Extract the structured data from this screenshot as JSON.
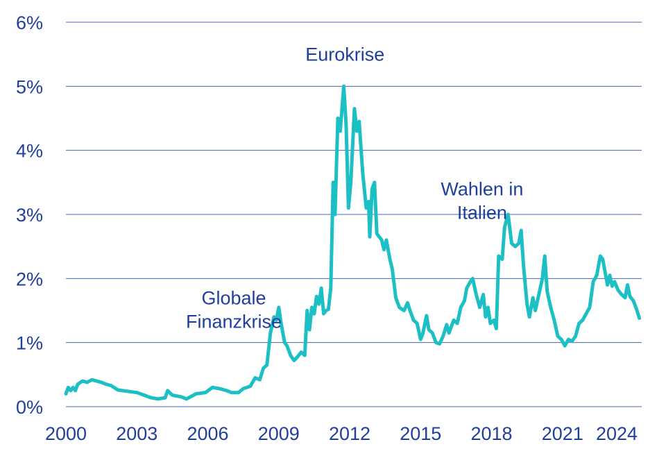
{
  "chart_data": {
    "type": "line",
    "title": "",
    "xlabel": "",
    "ylabel": "",
    "xlim": [
      2000,
      2024.35
    ],
    "ylim": [
      0,
      6
    ],
    "grid": true,
    "x_ticks": [
      2000,
      2003,
      2006,
      2009,
      2012,
      2015,
      2018,
      2021,
      2024
    ],
    "x_tick_labels": [
      "2000",
      "2003",
      "2006",
      "2009",
      "2012",
      "2015",
      "2018",
      "2021",
      "2024"
    ],
    "y_ticks": [
      0,
      1,
      2,
      3,
      4,
      5,
      6
    ],
    "y_tick_labels": [
      "0%",
      "1%",
      "2%",
      "3%",
      "4%",
      "5%",
      "6%"
    ],
    "annotations": [
      {
        "lines": [
          "Globale",
          "Finanzkrise"
        ],
        "x": 2007.1,
        "y": 1.6
      },
      {
        "lines": [
          "Eurokrise"
        ],
        "x": 2011.8,
        "y": 5.4
      },
      {
        "lines": [
          "Wahlen in",
          "Italien"
        ],
        "x": 2017.6,
        "y": 3.3
      }
    ],
    "series": [
      {
        "color": "#1cbfc4",
        "points": [
          [
            2000.0,
            0.2
          ],
          [
            2000.1,
            0.3
          ],
          [
            2000.2,
            0.25
          ],
          [
            2000.3,
            0.3
          ],
          [
            2000.4,
            0.25
          ],
          [
            2000.5,
            0.35
          ],
          [
            2000.7,
            0.4
          ],
          [
            2000.9,
            0.38
          ],
          [
            2001.1,
            0.42
          ],
          [
            2001.3,
            0.4
          ],
          [
            2001.5,
            0.38
          ],
          [
            2001.7,
            0.35
          ],
          [
            2001.9,
            0.33
          ],
          [
            2002.2,
            0.26
          ],
          [
            2002.6,
            0.24
          ],
          [
            2003.0,
            0.22
          ],
          [
            2003.3,
            0.18
          ],
          [
            2003.6,
            0.14
          ],
          [
            2003.9,
            0.12
          ],
          [
            2004.2,
            0.14
          ],
          [
            2004.3,
            0.25
          ],
          [
            2004.5,
            0.18
          ],
          [
            2004.9,
            0.15
          ],
          [
            2005.1,
            0.12
          ],
          [
            2005.5,
            0.2
          ],
          [
            2005.9,
            0.22
          ],
          [
            2006.2,
            0.3
          ],
          [
            2006.5,
            0.28
          ],
          [
            2006.8,
            0.25
          ],
          [
            2007.0,
            0.22
          ],
          [
            2007.3,
            0.22
          ],
          [
            2007.5,
            0.28
          ],
          [
            2007.8,
            0.32
          ],
          [
            2008.0,
            0.45
          ],
          [
            2008.2,
            0.42
          ],
          [
            2008.35,
            0.6
          ],
          [
            2008.5,
            0.65
          ],
          [
            2008.65,
            1.15
          ],
          [
            2008.8,
            1.4
          ],
          [
            2008.9,
            1.35
          ],
          [
            2009.0,
            1.55
          ],
          [
            2009.1,
            1.3
          ],
          [
            2009.25,
            1.0
          ],
          [
            2009.35,
            0.95
          ],
          [
            2009.5,
            0.8
          ],
          [
            2009.65,
            0.72
          ],
          [
            2009.8,
            0.78
          ],
          [
            2009.95,
            0.85
          ],
          [
            2010.1,
            0.8
          ],
          [
            2010.2,
            1.5
          ],
          [
            2010.3,
            1.2
          ],
          [
            2010.4,
            1.55
          ],
          [
            2010.5,
            1.45
          ],
          [
            2010.6,
            1.72
          ],
          [
            2010.7,
            1.6
          ],
          [
            2010.8,
            1.85
          ],
          [
            2010.9,
            1.45
          ],
          [
            2011.0,
            1.5
          ],
          [
            2011.1,
            1.52
          ],
          [
            2011.2,
            1.85
          ],
          [
            2011.3,
            3.5
          ],
          [
            2011.38,
            3.0
          ],
          [
            2011.5,
            4.5
          ],
          [
            2011.6,
            4.3
          ],
          [
            2011.75,
            5.0
          ],
          [
            2011.85,
            4.4
          ],
          [
            2011.95,
            3.1
          ],
          [
            2012.05,
            3.5
          ],
          [
            2012.2,
            4.65
          ],
          [
            2012.3,
            4.3
          ],
          [
            2012.4,
            4.45
          ],
          [
            2012.55,
            3.65
          ],
          [
            2012.7,
            3.1
          ],
          [
            2012.8,
            3.2
          ],
          [
            2012.85,
            2.65
          ],
          [
            2012.95,
            3.4
          ],
          [
            2013.05,
            3.5
          ],
          [
            2013.15,
            2.7
          ],
          [
            2013.35,
            2.6
          ],
          [
            2013.45,
            2.45
          ],
          [
            2013.55,
            2.6
          ],
          [
            2013.7,
            2.3
          ],
          [
            2013.8,
            2.15
          ],
          [
            2013.95,
            1.7
          ],
          [
            2014.1,
            1.55
          ],
          [
            2014.3,
            1.5
          ],
          [
            2014.45,
            1.62
          ],
          [
            2014.55,
            1.5
          ],
          [
            2014.7,
            1.35
          ],
          [
            2014.85,
            1.3
          ],
          [
            2015.0,
            1.05
          ],
          [
            2015.1,
            1.15
          ],
          [
            2015.25,
            1.42
          ],
          [
            2015.35,
            1.2
          ],
          [
            2015.5,
            1.15
          ],
          [
            2015.65,
            1.0
          ],
          [
            2015.8,
            0.98
          ],
          [
            2015.95,
            1.1
          ],
          [
            2016.1,
            1.28
          ],
          [
            2016.2,
            1.15
          ],
          [
            2016.4,
            1.35
          ],
          [
            2016.55,
            1.3
          ],
          [
            2016.7,
            1.55
          ],
          [
            2016.85,
            1.65
          ],
          [
            2016.95,
            1.85
          ],
          [
            2017.1,
            1.95
          ],
          [
            2017.2,
            2.0
          ],
          [
            2017.35,
            1.75
          ],
          [
            2017.5,
            1.55
          ],
          [
            2017.65,
            1.75
          ],
          [
            2017.75,
            1.4
          ],
          [
            2017.85,
            1.55
          ],
          [
            2017.95,
            1.3
          ],
          [
            2018.1,
            1.35
          ],
          [
            2018.2,
            1.22
          ],
          [
            2018.3,
            2.35
          ],
          [
            2018.45,
            2.3
          ],
          [
            2018.55,
            2.8
          ],
          [
            2018.7,
            3.0
          ],
          [
            2018.85,
            2.55
          ],
          [
            2019.0,
            2.5
          ],
          [
            2019.15,
            2.55
          ],
          [
            2019.25,
            2.75
          ],
          [
            2019.35,
            2.2
          ],
          [
            2019.5,
            1.6
          ],
          [
            2019.6,
            1.4
          ],
          [
            2019.75,
            1.7
          ],
          [
            2019.85,
            1.5
          ],
          [
            2020.0,
            1.75
          ],
          [
            2020.15,
            2.0
          ],
          [
            2020.25,
            2.35
          ],
          [
            2020.35,
            1.8
          ],
          [
            2020.5,
            1.55
          ],
          [
            2020.65,
            1.35
          ],
          [
            2020.8,
            1.1
          ],
          [
            2020.95,
            1.05
          ],
          [
            2021.1,
            0.95
          ],
          [
            2021.25,
            1.05
          ],
          [
            2021.4,
            1.02
          ],
          [
            2021.55,
            1.1
          ],
          [
            2021.7,
            1.3
          ],
          [
            2021.85,
            1.35
          ],
          [
            2022.0,
            1.45
          ],
          [
            2022.15,
            1.55
          ],
          [
            2022.3,
            1.95
          ],
          [
            2022.45,
            2.05
          ],
          [
            2022.6,
            2.35
          ],
          [
            2022.7,
            2.3
          ],
          [
            2022.8,
            2.1
          ],
          [
            2022.9,
            1.9
          ],
          [
            2023.0,
            2.05
          ],
          [
            2023.1,
            1.88
          ],
          [
            2023.2,
            1.95
          ],
          [
            2023.35,
            1.82
          ],
          [
            2023.5,
            1.75
          ],
          [
            2023.65,
            1.7
          ],
          [
            2023.75,
            1.9
          ],
          [
            2023.85,
            1.72
          ],
          [
            2024.0,
            1.65
          ],
          [
            2024.15,
            1.5
          ],
          [
            2024.25,
            1.38
          ]
        ]
      }
    ]
  }
}
